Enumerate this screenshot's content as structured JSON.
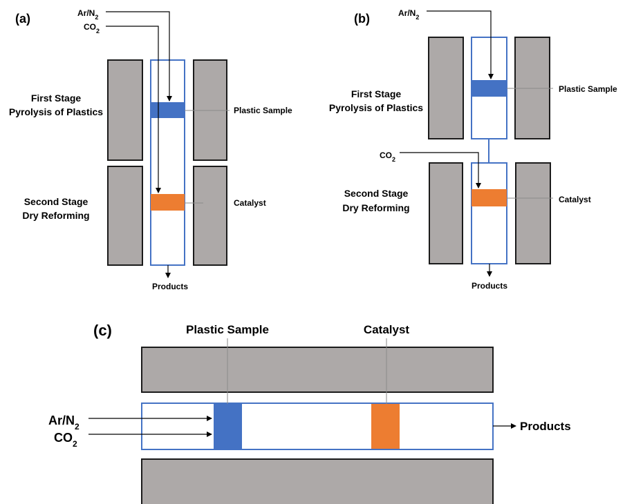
{
  "colors": {
    "furnace": "#ada9a8",
    "tube_border": "#4472c4",
    "plastic_sample": "#4472c4",
    "catalyst": "#ed7d31"
  },
  "panel_a": {
    "label": "(a)",
    "gas1": "Ar/N",
    "gas1_sub": "2",
    "gas2": "CO",
    "gas2_sub": "2",
    "stage1_line1": "First Stage",
    "stage1_line2": "Pyrolysis of Plastics",
    "stage2_line1": "Second Stage",
    "stage2_line2": "Dry Reforming",
    "sample_label": "Plastic Sample",
    "catalyst_label": "Catalyst",
    "products": "Products"
  },
  "panel_b": {
    "label": "(b)",
    "gas1": "Ar/N",
    "gas1_sub": "2",
    "gas2": "CO",
    "gas2_sub": "2",
    "stage1_line1": "First Stage",
    "stage1_line2": "Pyrolysis of Plastics",
    "stage2_line1": "Second Stage",
    "stage2_line2": "Dry Reforming",
    "sample_label": "Plastic Sample",
    "catalyst_label": "Catalyst",
    "products": "Products"
  },
  "panel_c": {
    "label": "(c)",
    "gas1": "Ar/N",
    "gas1_sub": "2",
    "gas2": "CO",
    "gas2_sub": "2",
    "sample_label": "Plastic Sample",
    "catalyst_label": "Catalyst",
    "products": "Products"
  }
}
